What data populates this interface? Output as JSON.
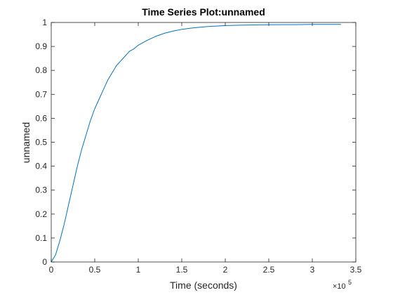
{
  "chart_data": {
    "type": "line",
    "title": "Time Series Plot:unnamed",
    "xlabel": "Time (seconds)",
    "ylabel": "unnamed",
    "x_multiplier_label": "×10",
    "x_multiplier_exponent": "5",
    "xlim": [
      0,
      350000
    ],
    "ylim": [
      0,
      1
    ],
    "xticks": [
      0,
      50000,
      100000,
      150000,
      200000,
      250000,
      300000,
      350000
    ],
    "xtick_labels": [
      "0",
      "0.5",
      "1",
      "1.5",
      "2",
      "2.5",
      "3",
      "3.5"
    ],
    "yticks": [
      0,
      0.1,
      0.2,
      0.3,
      0.4,
      0.5,
      0.6,
      0.7,
      0.8,
      0.9,
      1
    ],
    "ytick_labels": [
      "0",
      "0.1",
      "0.2",
      "0.3",
      "0.4",
      "0.5",
      "0.6",
      "0.7",
      "0.8",
      "0.9",
      "1"
    ],
    "grid": false,
    "series": [
      {
        "color": "#0072bd",
        "x": [
          0,
          5000,
          10000,
          15000,
          20000,
          25000,
          30000,
          35000,
          40000,
          45000,
          50000,
          55000,
          60000,
          65000,
          70000,
          75000,
          80000,
          85000,
          90000,
          95000,
          100000,
          110000,
          120000,
          130000,
          140000,
          150000,
          160000,
          170000,
          180000,
          190000,
          200000,
          220000,
          240000,
          260000,
          280000,
          300000,
          320000,
          333000
        ],
        "y": [
          0,
          0.03,
          0.09,
          0.16,
          0.24,
          0.32,
          0.4,
          0.47,
          0.53,
          0.59,
          0.64,
          0.68,
          0.72,
          0.76,
          0.79,
          0.82,
          0.84,
          0.86,
          0.88,
          0.89,
          0.905,
          0.925,
          0.942,
          0.955,
          0.964,
          0.971,
          0.976,
          0.98,
          0.983,
          0.985,
          0.987,
          0.989,
          0.99,
          0.991,
          0.991,
          0.992,
          0.992,
          0.992
        ]
      }
    ]
  }
}
